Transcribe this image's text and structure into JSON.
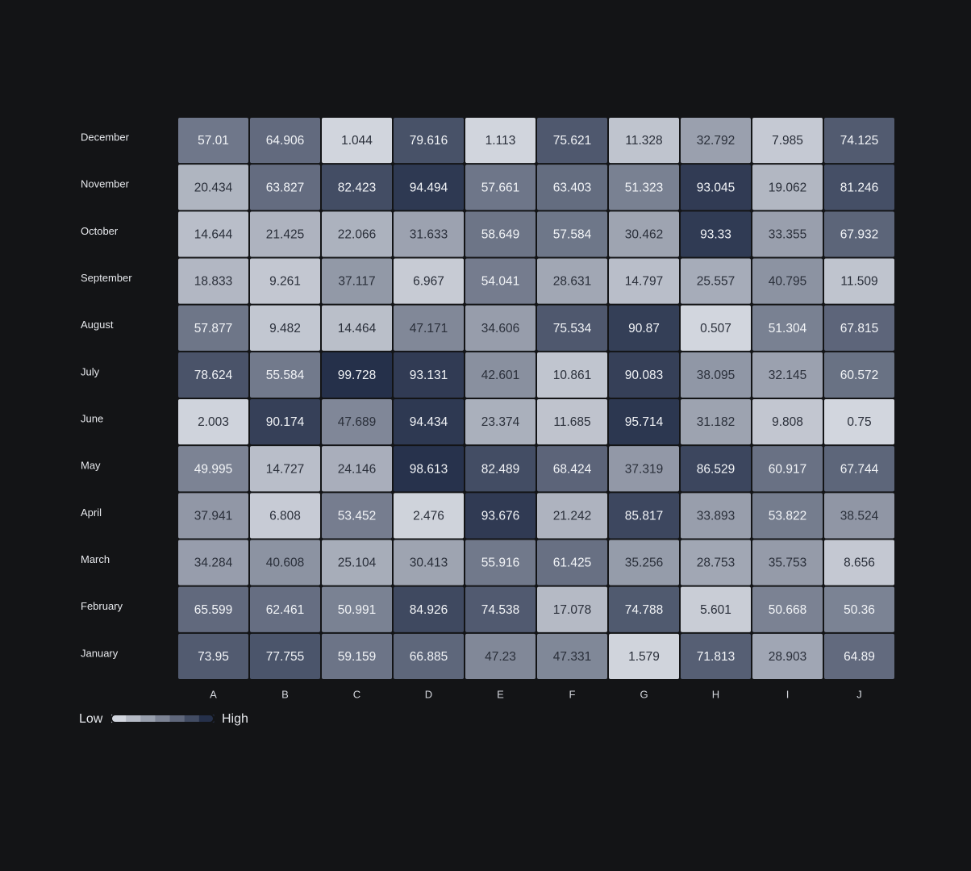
{
  "chart_data": {
    "type": "heatmap",
    "x_categories": [
      "A",
      "B",
      "C",
      "D",
      "E",
      "F",
      "G",
      "H",
      "I",
      "J"
    ],
    "y_categories": [
      "December",
      "November",
      "October",
      "September",
      "August",
      "July",
      "June",
      "May",
      "April",
      "March",
      "February",
      "January"
    ],
    "values": [
      [
        57.01,
        64.906,
        1.044,
        79.616,
        1.113,
        75.621,
        11.328,
        32.792,
        7.985,
        74.125
      ],
      [
        20.434,
        63.827,
        82.423,
        94.494,
        57.661,
        63.403,
        51.323,
        93.045,
        19.062,
        81.246
      ],
      [
        14.644,
        21.425,
        22.066,
        31.633,
        58.649,
        57.584,
        30.462,
        93.33,
        33.355,
        67.932
      ],
      [
        18.833,
        9.261,
        37.117,
        6.967,
        54.041,
        28.631,
        14.797,
        25.557,
        40.795,
        11.509
      ],
      [
        57.877,
        9.482,
        14.464,
        47.171,
        34.606,
        75.534,
        90.87,
        0.507,
        51.304,
        67.815
      ],
      [
        78.624,
        55.584,
        99.728,
        93.131,
        42.601,
        10.861,
        90.083,
        38.095,
        32.145,
        60.572
      ],
      [
        2.003,
        90.174,
        47.689,
        94.434,
        23.374,
        11.685,
        95.714,
        31.182,
        9.808,
        0.75
      ],
      [
        49.995,
        14.727,
        24.146,
        98.613,
        82.489,
        68.424,
        37.319,
        86.529,
        60.917,
        67.744
      ],
      [
        37.941,
        6.808,
        53.452,
        2.476,
        93.676,
        21.242,
        85.817,
        33.893,
        53.822,
        38.524
      ],
      [
        34.284,
        40.608,
        25.104,
        30.413,
        55.916,
        61.425,
        35.256,
        28.753,
        35.753,
        8.656
      ],
      [
        65.599,
        62.461,
        50.991,
        84.926,
        74.538,
        17.078,
        74.788,
        5.601,
        50.668,
        50.36
      ],
      [
        73.95,
        77.755,
        59.159,
        66.885,
        47.23,
        47.331,
        1.579,
        71.813,
        28.903,
        64.89
      ]
    ],
    "colors": [
      "#d2d6de",
      "#25304a"
    ],
    "legend": {
      "low": "Low",
      "high": "High"
    }
  }
}
